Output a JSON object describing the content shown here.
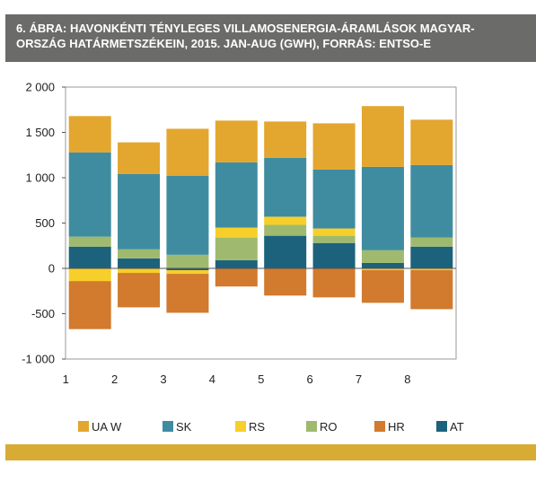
{
  "title": "6. ÁBRA: HAVONKÉNTI TÉNYLEGES VILLAMOSENERGIA-ÁRAMLÁSOK MAGYARORSZÁG HATÁRMETSZÉKEIN, 2015. JAN-AUG (GWH), FORRÁS: ENTSO-E",
  "title_line1": "6. ÁBRA: HAVONKÉNTI TÉNYLEGES VILLAMOSENERGIA-ÁRAMLÁSOK MAGYAR-",
  "title_line2": "ORSZÁG HATÁRMETSZÉKEIN, 2015. JAN-AUG (GWH), FORRÁS: ENTSO-E",
  "colors": {
    "title_bg": "#6b6b6a",
    "bottom_bar": "#d8ab35",
    "UA W": "#e3a62e",
    "SK": "#3f8ca1",
    "RS": "#f6cf2a",
    "RO": "#9fba6e",
    "HR": "#d27a2e",
    "AT": "#1c627c"
  },
  "chart_data": {
    "type": "bar",
    "stacked": true,
    "categories": [
      "1",
      "2",
      "3",
      "4",
      "5",
      "6",
      "7",
      "8"
    ],
    "ylim": [
      -1000,
      2000
    ],
    "yticks": [
      -1000,
      -500,
      0,
      500,
      1000,
      1500,
      2000
    ],
    "ytick_labels": [
      "-1 000",
      "-500",
      "0",
      "500",
      "1 000",
      "1 500",
      "2 000"
    ],
    "grid": false,
    "legend_position": "bottom",
    "series": [
      {
        "name": "AT",
        "values": [
          240,
          110,
          -20,
          90,
          360,
          280,
          60,
          240
        ]
      },
      {
        "name": "RO",
        "values": [
          110,
          100,
          150,
          250,
          120,
          80,
          140,
          100
        ]
      },
      {
        "name": "RS",
        "values": [
          -140,
          -50,
          -40,
          110,
          90,
          80,
          -20,
          -20
        ]
      },
      {
        "name": "SK",
        "values": [
          930,
          830,
          870,
          720,
          650,
          650,
          920,
          800
        ]
      },
      {
        "name": "HR",
        "values": [
          -530,
          -380,
          -430,
          -200,
          -300,
          -320,
          -360,
          -430
        ]
      },
      {
        "name": "UA W",
        "values": [
          400,
          350,
          520,
          460,
          400,
          510,
          670,
          500
        ]
      }
    ],
    "legend": [
      "UA  W",
      "SK",
      "RS",
      "RO",
      "HR",
      "AT"
    ]
  }
}
